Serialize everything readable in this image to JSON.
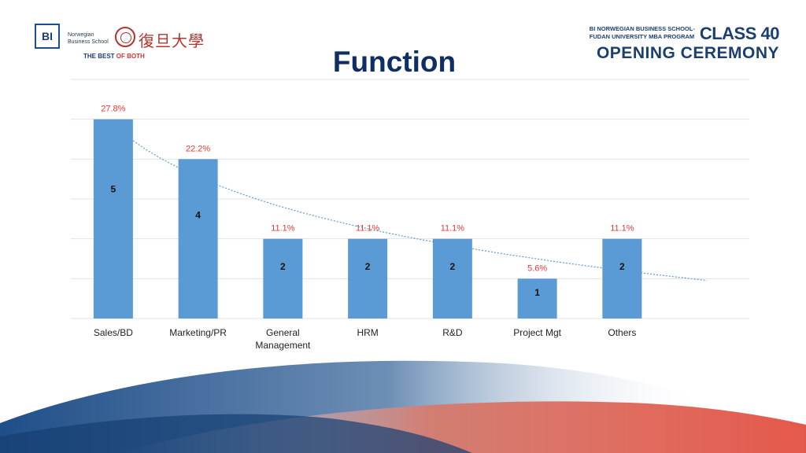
{
  "header": {
    "bi_logo_text": "BI",
    "bi_name_line1": "Norwegian",
    "bi_name_line2": "Business School",
    "fudan_calligraphy": "復旦大學",
    "tagline_part1": "THE BEST ",
    "tagline_part2": "OF BOTH",
    "program_line1": "BI NORWEGIAN BUSINESS SCHOOL-",
    "program_line2": "FUDAN UNIVERSITY MBA PROGRAM",
    "class_label": "CLASS 40",
    "ceremony_label": "OPENING CEREMONY"
  },
  "chart_data": {
    "type": "bar",
    "title": "Function",
    "categories": [
      [
        "Sales/BD"
      ],
      [
        "Marketing/PR"
      ],
      [
        "General",
        "Management"
      ],
      [
        "HRM"
      ],
      [
        "R&D"
      ],
      [
        "Project Mgt"
      ],
      [
        "Others"
      ]
    ],
    "values": [
      5,
      4,
      2,
      2,
      2,
      1,
      2
    ],
    "percent_labels": [
      "27.8%",
      "22.2%",
      "11.1%",
      "11.1%",
      "11.1%",
      "5.6%",
      "11.1%"
    ],
    "ylim": [
      0,
      6
    ],
    "grid": true,
    "trendline": "dotted",
    "colors": {
      "bar": "#5b9bd5",
      "percent": "#e53935",
      "value": "#111111",
      "grid": "#e3e3e3",
      "trend": "#5b9bd5",
      "axis_text": "#222222"
    }
  }
}
